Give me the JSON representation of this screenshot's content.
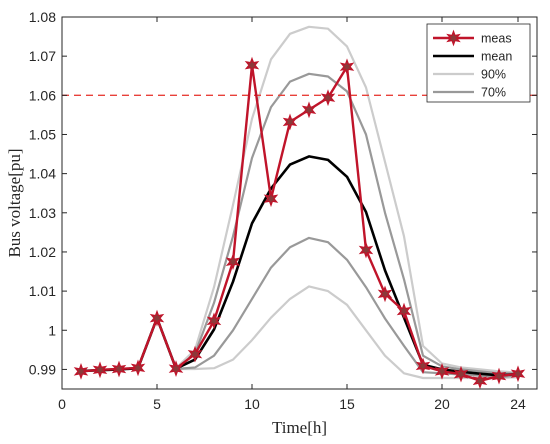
{
  "chart_data": {
    "type": "line",
    "xlabel": "Time[h]",
    "ylabel": "Bus voltage[pu]",
    "xlim": [
      0,
      25
    ],
    "ylim": [
      0.985,
      1.08
    ],
    "x_ticks": [
      0,
      5,
      10,
      15,
      20,
      24
    ],
    "y_ticks": [
      0.99,
      1.0,
      1.01,
      1.02,
      1.03,
      1.04,
      1.05,
      1.06,
      1.07,
      1.08
    ],
    "y_tick_labels": [
      "0.99",
      "1",
      "1.01",
      "1.02",
      "1.03",
      "1.04",
      "1.05",
      "1.06",
      "1.07",
      "1.08"
    ],
    "x_tick_labels": [
      "0",
      "5",
      "10",
      "15",
      "20",
      "24"
    ],
    "grid": false,
    "legend_position": "top-right",
    "reference_line": {
      "y": 1.06,
      "style": "dashed",
      "color": "#e8403a"
    },
    "x": [
      1,
      2,
      3,
      4,
      5,
      6,
      7,
      8,
      9,
      10,
      11,
      12,
      13,
      14,
      15,
      16,
      17,
      18,
      19,
      20,
      21,
      22,
      23,
      24
    ],
    "series": [
      {
        "name": "meas",
        "color": "#c0142a",
        "marker": "star",
        "values": [
          0.9895,
          0.9899,
          0.9901,
          0.9904,
          1.0031,
          0.9902,
          0.9939,
          1.0024,
          1.0175,
          1.0677,
          1.0336,
          1.0532,
          1.0563,
          1.0594,
          1.0673,
          1.0205,
          1.0093,
          1.0049,
          0.9909,
          0.9895,
          0.9888,
          0.9871,
          0.9883,
          0.9889
        ]
      },
      {
        "name": "mean",
        "color": "#000000",
        "values": [
          0.9896,
          0.9898,
          0.99,
          0.9903,
          1.0031,
          0.9902,
          0.9925,
          1.0002,
          1.0124,
          1.0273,
          1.0362,
          1.0423,
          1.0444,
          1.0435,
          1.0392,
          1.0302,
          1.0153,
          1.0032,
          0.9912,
          0.99,
          0.9894,
          0.9889,
          0.9885,
          0.9888
        ]
      }
    ],
    "bands": [
      {
        "name": "90%",
        "color": "#cccccc",
        "upper": [
          0.9896,
          0.9899,
          0.9901,
          0.9904,
          1.0031,
          0.9903,
          0.995,
          1.011,
          1.032,
          1.054,
          1.0692,
          1.0757,
          1.0775,
          1.077,
          1.0725,
          1.062,
          1.043,
          1.024,
          0.996,
          0.9915,
          0.9905,
          0.99,
          0.9895,
          0.9892
        ],
        "lower": [
          0.9895,
          0.9898,
          0.99,
          0.9903,
          1.0031,
          0.9901,
          0.9901,
          0.9903,
          0.9925,
          0.9975,
          1.0032,
          1.008,
          1.0112,
          1.01,
          1.0065,
          1.0,
          0.9935,
          0.989,
          0.9878,
          0.9878,
          0.9878,
          0.9878,
          0.9878,
          0.988
        ]
      },
      {
        "name": "70%",
        "color": "#999999",
        "upper": [
          0.9896,
          0.9899,
          0.9901,
          0.9904,
          1.0031,
          0.9902,
          0.994,
          1.007,
          1.024,
          1.044,
          1.057,
          1.0635,
          1.0655,
          1.0648,
          1.061,
          1.05,
          1.03,
          1.013,
          0.9935,
          0.9908,
          0.99,
          0.9895,
          0.989,
          0.989
        ],
        "lower": [
          0.9895,
          0.9898,
          0.99,
          0.9903,
          1.0031,
          0.9901,
          0.9905,
          0.9935,
          1.0,
          1.008,
          1.016,
          1.0212,
          1.0236,
          1.0225,
          1.018,
          1.011,
          1.003,
          0.996,
          0.9893,
          0.989,
          0.9887,
          0.9884,
          0.988,
          0.9885
        ]
      }
    ]
  }
}
